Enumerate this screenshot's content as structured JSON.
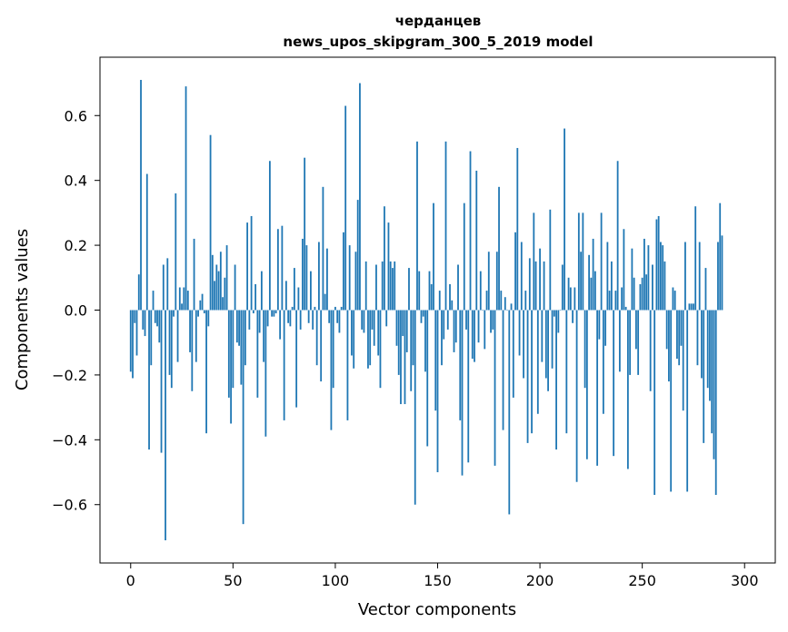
{
  "chart_data": {
    "type": "bar",
    "title": "черданцев",
    "subtitle": "news_upos_skipgram_300_5_2019 model",
    "xlabel": "Vector components",
    "ylabel": "Components values",
    "xlim": [
      -15,
      315
    ],
    "ylim": [
      -0.78,
      0.78
    ],
    "xticks": [
      0,
      50,
      100,
      150,
      200,
      250,
      300
    ],
    "yticks": [
      -0.6,
      -0.4,
      -0.2,
      0.0,
      0.2,
      0.4,
      0.6
    ],
    "ytick_labels": [
      "−0.6",
      "−0.4",
      "−0.2",
      "0.0",
      "0.2",
      "0.4",
      "0.6"
    ],
    "grid": false,
    "bar_color": "#1f77b4",
    "x_start": 0,
    "values": [
      -0.19,
      -0.21,
      -0.04,
      -0.14,
      0.11,
      0.71,
      -0.06,
      -0.08,
      0.42,
      -0.43,
      -0.17,
      0.06,
      -0.04,
      -0.05,
      -0.1,
      -0.44,
      0.14,
      -0.71,
      0.16,
      -0.2,
      -0.24,
      -0.02,
      0.36,
      -0.16,
      0.07,
      0.02,
      0.07,
      0.69,
      0.06,
      -0.13,
      -0.25,
      0.22,
      -0.16,
      -0.02,
      0.03,
      0.05,
      -0.01,
      -0.38,
      -0.05,
      0.54,
      0.17,
      0.09,
      0.14,
      0.12,
      0.18,
      0.04,
      0.1,
      0.2,
      -0.27,
      -0.35,
      -0.24,
      0.14,
      -0.1,
      -0.11,
      -0.23,
      -0.66,
      -0.17,
      0.27,
      -0.06,
      0.29,
      -0.01,
      0.08,
      -0.27,
      -0.07,
      0.12,
      -0.16,
      -0.39,
      -0.05,
      0.46,
      -0.02,
      -0.02,
      -0.01,
      0.25,
      -0.09,
      0.26,
      -0.34,
      0.09,
      -0.04,
      -0.05,
      0.01,
      0.13,
      -0.3,
      0.07,
      -0.06,
      0.22,
      0.47,
      0.2,
      -0.04,
      0.12,
      -0.06,
      0.01,
      -0.17,
      0.21,
      -0.22,
      0.38,
      0.05,
      0.19,
      -0.04,
      -0.37,
      -0.24,
      0.01,
      -0.04,
      -0.07,
      0.01,
      0.24,
      0.63,
      -0.34,
      0.2,
      -0.14,
      -0.18,
      0.18,
      0.34,
      0.7,
      -0.06,
      -0.07,
      0.15,
      -0.18,
      -0.17,
      -0.06,
      -0.11,
      0.14,
      -0.14,
      -0.24,
      0.15,
      0.32,
      -0.05,
      0.27,
      0.15,
      0.13,
      0.15,
      -0.11,
      -0.2,
      -0.29,
      -0.08,
      -0.29,
      -0.13,
      0.13,
      -0.25,
      -0.17,
      -0.6,
      0.52,
      0.12,
      -0.04,
      -0.02,
      -0.19,
      -0.42,
      0.12,
      0.08,
      0.33,
      -0.31,
      -0.5,
      0.06,
      -0.17,
      -0.09,
      0.52,
      -0.06,
      0.08,
      0.03,
      -0.13,
      -0.1,
      0.14,
      -0.34,
      -0.51,
      0.33,
      -0.06,
      -0.47,
      0.49,
      -0.15,
      -0.16,
      0.43,
      -0.1,
      0.12,
      0.0,
      -0.12,
      0.06,
      0.18,
      -0.07,
      -0.06,
      -0.48,
      0.18,
      0.38,
      0.06,
      -0.37,
      0.04,
      0.0,
      -0.63,
      0.02,
      -0.27,
      0.24,
      0.5,
      -0.14,
      0.21,
      -0.21,
      0.06,
      -0.41,
      0.16,
      -0.38,
      0.3,
      0.15,
      -0.32,
      0.19,
      -0.16,
      0.15,
      -0.21,
      -0.25,
      0.31,
      -0.18,
      -0.02,
      -0.43,
      -0.07,
      0.0,
      0.14,
      0.56,
      -0.38,
      0.1,
      0.07,
      -0.04,
      0.07,
      -0.53,
      0.3,
      0.18,
      0.3,
      -0.24,
      -0.46,
      0.17,
      0.1,
      0.22,
      0.12,
      -0.48,
      -0.09,
      0.3,
      -0.32,
      -0.11,
      0.21,
      0.06,
      0.15,
      -0.45,
      0.06,
      0.46,
      -0.19,
      0.07,
      0.25,
      0.01,
      -0.49,
      -0.2,
      0.19,
      0.1,
      -0.12,
      -0.2,
      0.08,
      0.1,
      0.22,
      0.11,
      0.2,
      -0.25,
      0.14,
      -0.57,
      0.28,
      0.29,
      0.21,
      0.2,
      0.15,
      -0.12,
      -0.22,
      -0.56,
      0.07,
      0.06,
      -0.15,
      -0.17,
      -0.11,
      -0.31,
      0.21,
      -0.56,
      0.02,
      0.02,
      0.02,
      0.32,
      -0.17,
      0.21,
      -0.21,
      -0.41,
      0.13,
      -0.24,
      -0.28,
      -0.38,
      -0.46,
      -0.57,
      0.21,
      0.33,
      0.23
    ]
  }
}
